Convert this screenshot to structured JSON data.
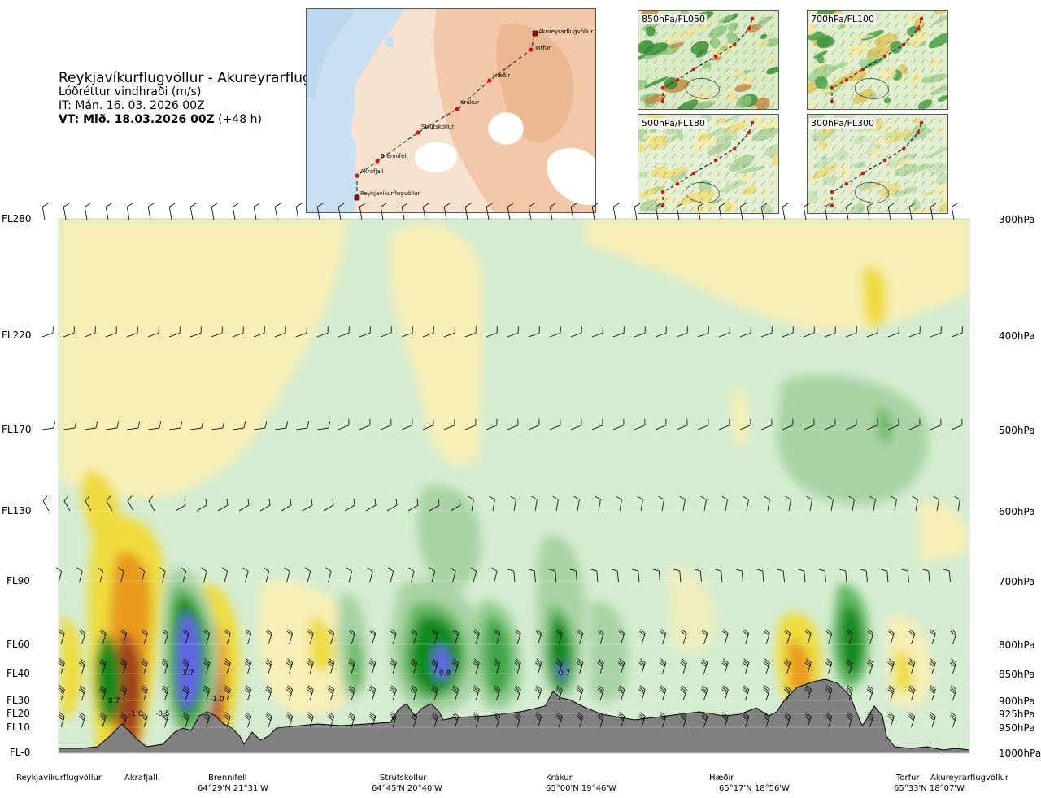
{
  "header": {
    "title": "Reykjavíkurflugvöllur - Akureyrarflugvöllur",
    "subtitle": "Lóðréttur vindhraði (m/s)",
    "issue_time": "IT: Mán. 16. 03. 2026 00Z",
    "valid_time_bold": "VT: Mið. 18.03.2026 00Z",
    "valid_time_offset": "(+48 h)"
  },
  "route_map": {
    "points": [
      {
        "label": "Akureyrarflugvöllur"
      },
      {
        "label": "Torfur"
      },
      {
        "label": "Hæðir"
      },
      {
        "label": "Krákur"
      },
      {
        "label": "Strútskollur"
      },
      {
        "label": "Brennifell"
      },
      {
        "label": "Akrafjall"
      },
      {
        "label": "Reykjavíkurflugvöllur"
      }
    ]
  },
  "level_panels": [
    {
      "label": "850hPa/FL050"
    },
    {
      "label": "700hPa/FL100"
    },
    {
      "label": "500hPa/FL180"
    },
    {
      "label": "300hPa/FL300"
    }
  ],
  "flight_levels": [
    "FL280",
    "FL220",
    "FL170",
    "FL130",
    "FL90",
    "FL60",
    "FL40",
    "FL30",
    "FL20",
    "FL10",
    "FL-0"
  ],
  "pressure_levels": [
    "300hPa",
    "400hPa",
    "500hPa",
    "600hPa",
    "700hPa",
    "800hPa",
    "850hPa",
    "900hPa",
    "925hPa",
    "950hPa",
    "1000hPa"
  ],
  "cross_section_values": [
    "0.7",
    "-1.0",
    "-0.5",
    "1.7",
    "-1.0",
    "0.8",
    "0.7"
  ],
  "waypoints": [
    {
      "name": "Reykjavíkurflugvöllur",
      "coord": ""
    },
    {
      "name": "Akrafjall",
      "coord": ""
    },
    {
      "name": "Brennifell",
      "coord": "64°29'N 21°31'W"
    },
    {
      "name": "Strútskollur",
      "coord": "64°45'N 20°40'W"
    },
    {
      "name": "Krákur",
      "coord": "65°00'N 19°46'W"
    },
    {
      "name": "Hæðir",
      "coord": "65°17'N 18°56'W"
    },
    {
      "name": "Torfur",
      "coord": "65°33'N 18°07'W"
    },
    {
      "name": "Akureyrarflugvöllur",
      "coord": ""
    }
  ],
  "colors": {
    "terrain": "#808080",
    "light_green": "#d4ecd0",
    "mid_green": "#a9d3a4",
    "green": "#64b864",
    "dark_green": "#0a8a1e",
    "blue": "#6464e6",
    "pale_yellow": "#f7efb5",
    "yellow": "#eedc3c",
    "orange": "#e89a1e",
    "brown": "#a0421a",
    "red": "#c81414",
    "route_line": "#333333",
    "route_point": "#e01010"
  }
}
